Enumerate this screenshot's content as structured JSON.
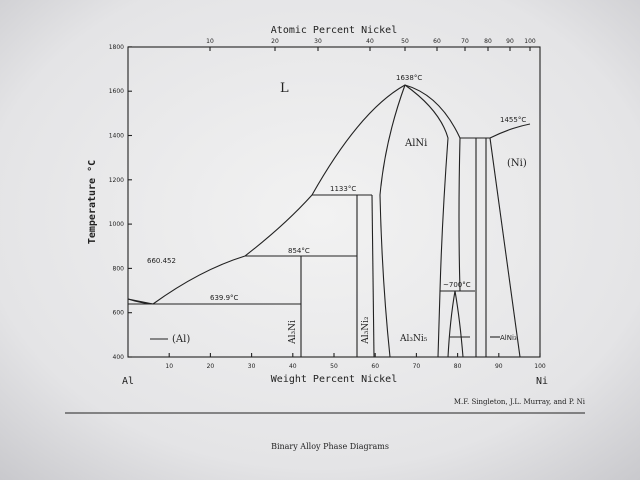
{
  "top_axis": {
    "title": "Atomic Percent Nickel",
    "ticks": [
      "10",
      "20",
      "30",
      "40",
      "50",
      "60",
      "70",
      "80",
      "90",
      "100"
    ]
  },
  "left_axis": {
    "title": "Temperature °C",
    "ticks": [
      "400",
      "600",
      "800",
      "1000",
      "1200",
      "1400",
      "1600",
      "1800"
    ]
  },
  "bottom_axis": {
    "title": "Weight Percent Nickel",
    "ticks": [
      "10",
      "20",
      "30",
      "40",
      "50",
      "60",
      "70",
      "80",
      "90",
      "100"
    ],
    "left_end": "Al",
    "right_end": "Ni"
  },
  "labels": {
    "liquid": "L",
    "peak": "1638°C",
    "alni": "AlNi",
    "ni_melt": "1455°C",
    "ni_phase": "(Ni)",
    "l133": "1133°C",
    "al_melt": "660.452",
    "l854": "854°C",
    "eutectic": "639.9°C",
    "al_phase": "(Al)",
    "al3ni": "Al₃Ni",
    "al3ni2": "Al₃Ni₂",
    "l700": "~700°C",
    "al3ni5": "Al₃Ni₅",
    "alni3": "AlNi₃"
  },
  "credit": "M.F. Singleton, J.L. Murray, and P. Ni",
  "footer": "Binary Alloy Phase Diagrams"
}
